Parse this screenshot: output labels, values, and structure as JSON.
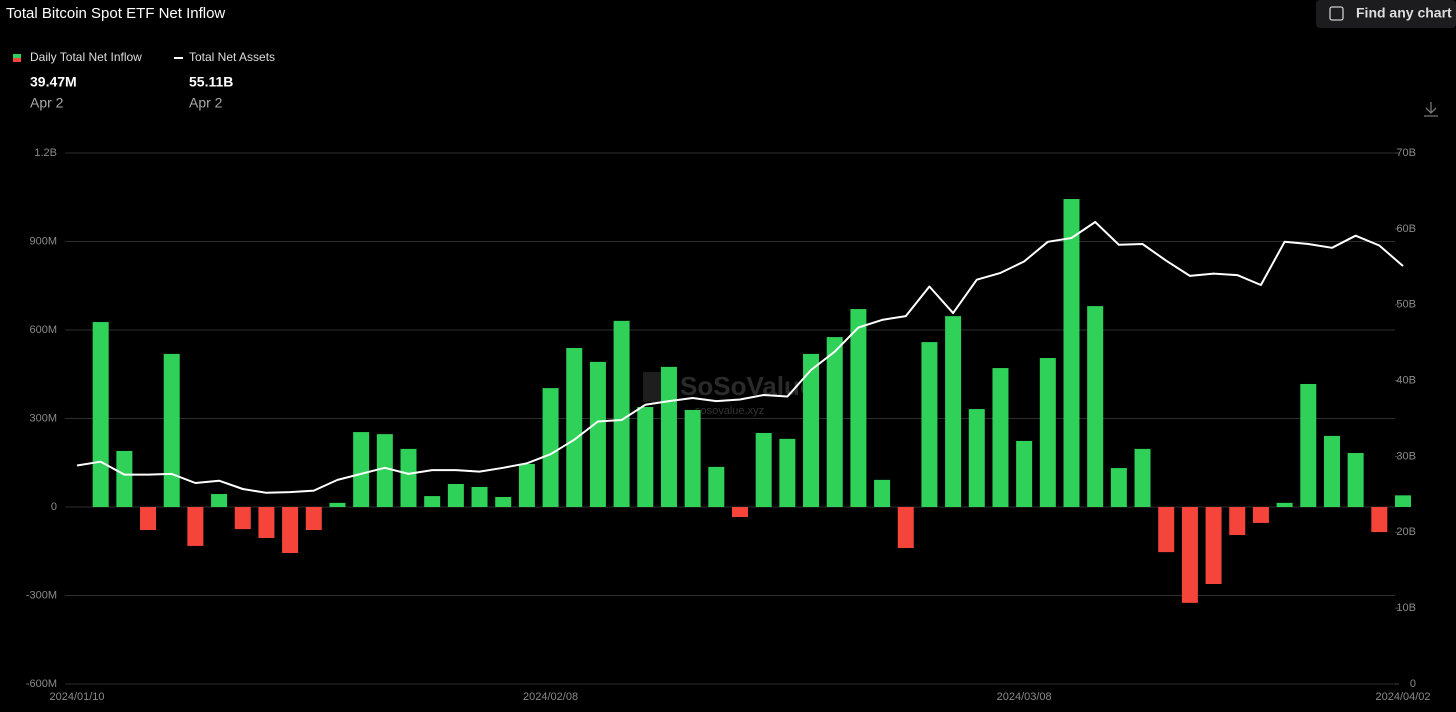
{
  "chart_data": {
    "type": "bar-line",
    "title": "Total Bitcoin Spot ETF Net Inflow",
    "categories": [
      "2024/01/10",
      null,
      null,
      null,
      null,
      null,
      null,
      null,
      null,
      null,
      null,
      null,
      null,
      null,
      null,
      null,
      null,
      null,
      null,
      null,
      "2024/02/08",
      null,
      null,
      null,
      null,
      null,
      null,
      null,
      null,
      null,
      null,
      null,
      null,
      null,
      null,
      null,
      null,
      null,
      null,
      null,
      "2024/03/08",
      null,
      null,
      null,
      null,
      null,
      null,
      null,
      null,
      null,
      null,
      null,
      null,
      null,
      null,
      null,
      "2024/04/02"
    ],
    "series": [
      {
        "name": "Daily Total Net Inflow",
        "type": "bar",
        "color": "#2fd158",
        "negative_color": "#f5453a",
        "latest_label": "39.47M",
        "latest_date": "Apr 2",
        "values": [
          null,
          627000000,
          190000000,
          -78000000,
          519000000,
          -132000000,
          44000000,
          -75000000,
          -105000000,
          -156000000,
          -78000000,
          14000000,
          254000000,
          247000000,
          197000000,
          37000000,
          78000000,
          68000000,
          34000000,
          146000000,
          403000000,
          539000000,
          492000000,
          631000000,
          339000000,
          475000000,
          329000000,
          136000000,
          -34000000,
          251000000,
          231000000,
          519000000,
          576000000,
          671000000,
          92000000,
          -139000000,
          559000000,
          647000000,
          332000000,
          471000000,
          224000000,
          505000000,
          1044000000,
          681000000,
          132000000,
          197000000,
          -153000000,
          -325000000,
          -261000000,
          -95000000,
          -54000000,
          14000000,
          417000000,
          241000000,
          183000000,
          -85000000,
          39470000
        ]
      },
      {
        "name": "Total Net Assets",
        "type": "line",
        "axis": "y2",
        "color": "#ffffff",
        "latest_label": "55.11B",
        "latest_date": "Apr 2",
        "values": [
          28800000000,
          29300000000,
          27600000000,
          27600000000,
          27700000000,
          26500000000,
          26800000000,
          25700000000,
          25200000000,
          25300000000,
          25500000000,
          26900000000,
          27700000000,
          28500000000,
          27700000000,
          28200000000,
          28200000000,
          28000000000,
          28500000000,
          29100000000,
          30300000000,
          32200000000,
          34600000000,
          34800000000,
          36800000000,
          37300000000,
          37700000000,
          37300000000,
          37500000000,
          38100000000,
          37900000000,
          41400000000,
          43800000000,
          47000000000,
          48000000000,
          48500000000,
          52400000000,
          48900000000,
          53300000000,
          54200000000,
          55700000000,
          58300000000,
          58800000000,
          60900000000,
          57900000000,
          58000000000,
          55800000000,
          53800000000,
          54100000000,
          53900000000,
          52600000000,
          58300000000,
          58000000000,
          57500000000,
          59100000000,
          57800000000,
          55110000000
        ]
      }
    ],
    "ylim": [
      -600000000,
      1200000000
    ],
    "yticks": [
      {
        "value": -600000000,
        "label": "-600M"
      },
      {
        "value": -300000000,
        "label": "-300M"
      },
      0,
      {
        "value": 300000000,
        "label": "300M"
      },
      {
        "value": 600000000,
        "label": "600M"
      },
      {
        "value": 900000000,
        "label": "900M"
      },
      {
        "value": 1200000000,
        "label": "1.2B"
      }
    ],
    "y2lim": [
      0,
      70000000000
    ],
    "y2ticks": [
      0,
      {
        "value": 10000000000,
        "label": "10B"
      },
      {
        "value": 20000000000,
        "label": "20B"
      },
      {
        "value": 30000000000,
        "label": "30B"
      },
      {
        "value": 40000000000,
        "label": "40B"
      },
      {
        "value": 50000000000,
        "label": "50B"
      },
      {
        "value": 60000000000,
        "label": "60B"
      },
      {
        "value": 70000000000,
        "label": "70B"
      }
    ],
    "grid": true
  },
  "watermark": {
    "brand": "SoSoValue",
    "url": "sosovalue.xyz"
  },
  "ui": {
    "search_button": "Find any chart"
  }
}
